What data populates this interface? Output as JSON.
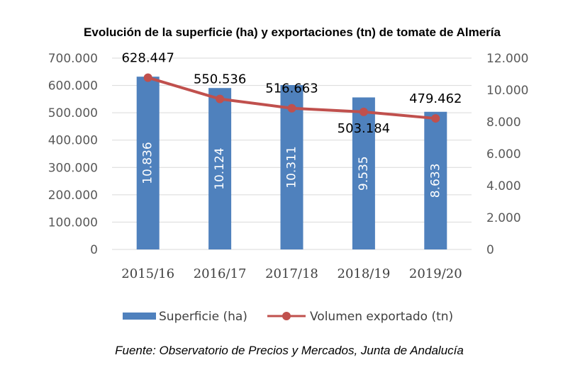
{
  "chart_data": {
    "type": "bar",
    "title": "Evolución de la superficie (ha) y exportaciones (tn) de tomate de Almería",
    "categories": [
      "2015/16",
      "2016/17",
      "2017/18",
      "2018/19",
      "2019/20"
    ],
    "series": [
      {
        "name": "Superficie (ha)",
        "type": "bar",
        "axis": "right",
        "color": "#4f81bd",
        "values": [
          10836,
          10124,
          10311,
          9535,
          8633
        ],
        "labels": [
          "10.836",
          "10.124",
          "10.311",
          "9.535",
          "8.633"
        ]
      },
      {
        "name": "Volumen exportado (tn)",
        "type": "line",
        "axis": "left",
        "color": "#c0504d",
        "values": [
          628447,
          550536,
          516663,
          503184,
          479462
        ],
        "labels": [
          "628.447",
          "550.536",
          "516.663",
          "503.184",
          "479.462"
        ]
      }
    ],
    "y_left": {
      "ylim": [
        0,
        700000
      ],
      "ticks": [
        "0",
        "100.000",
        "200.000",
        "300.000",
        "400.000",
        "500.000",
        "600.000",
        "700.000"
      ]
    },
    "y_right": {
      "ylim": [
        0,
        12000
      ],
      "ticks": [
        "0",
        "2.000",
        "4.000",
        "6.000",
        "8.000",
        "10.000",
        "12.000"
      ]
    },
    "grid": true,
    "legend": "bottom"
  },
  "source_note": "Fuente: Observatorio de Precios y Mercados, Junta de Andalucía"
}
